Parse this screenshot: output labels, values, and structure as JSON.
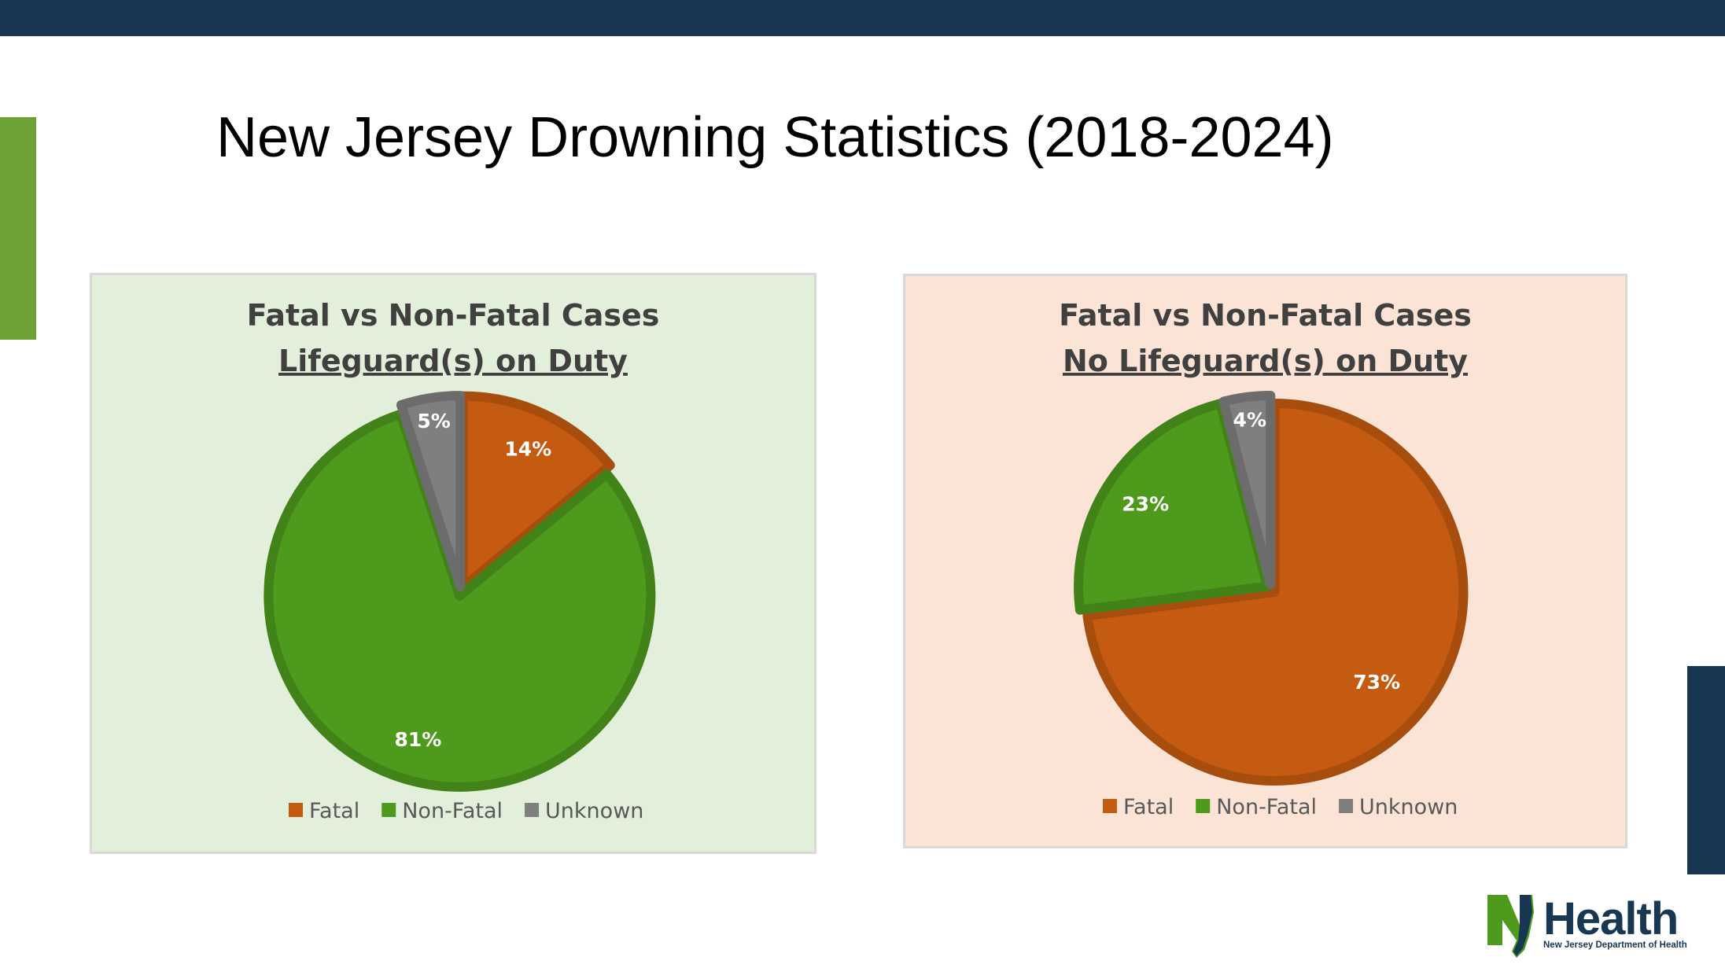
{
  "slide": {
    "title": "New Jersey Drowning Statistics (2018-2024)"
  },
  "colors": {
    "top_bar": "#173753",
    "left_accent": "#6ca135",
    "right_accent": "#173753",
    "fatal": "#c55a11",
    "non_fatal": "#4e9a1d",
    "unknown": "#7f7f7f",
    "panel_1_bg": "#e2efda",
    "panel_2_bg": "#fbe3d6"
  },
  "logo": {
    "text": "NJHealth",
    "subtext": "New Jersey Department of Health"
  },
  "chart_data": [
    {
      "type": "pie",
      "title": "Fatal vs Non-Fatal Cases",
      "subtitle": "Lifeguard(s) on Duty",
      "categories": [
        "Fatal",
        "Non-Fatal",
        "Unknown"
      ],
      "values": [
        14,
        81,
        5
      ],
      "labels": [
        "14%",
        "81%",
        "5%"
      ],
      "colors": [
        "#c55a11",
        "#4e9a1d",
        "#7f7f7f"
      ],
      "legend_position": "bottom"
    },
    {
      "type": "pie",
      "title": "Fatal vs Non-Fatal Cases",
      "subtitle": "No Lifeguard(s) on Duty",
      "categories": [
        "Fatal",
        "Non-Fatal",
        "Unknown"
      ],
      "values": [
        73,
        23,
        4
      ],
      "labels": [
        "73%",
        "23%",
        "4%"
      ],
      "colors": [
        "#c55a11",
        "#4e9a1d",
        "#7f7f7f"
      ],
      "legend_position": "bottom"
    }
  ]
}
